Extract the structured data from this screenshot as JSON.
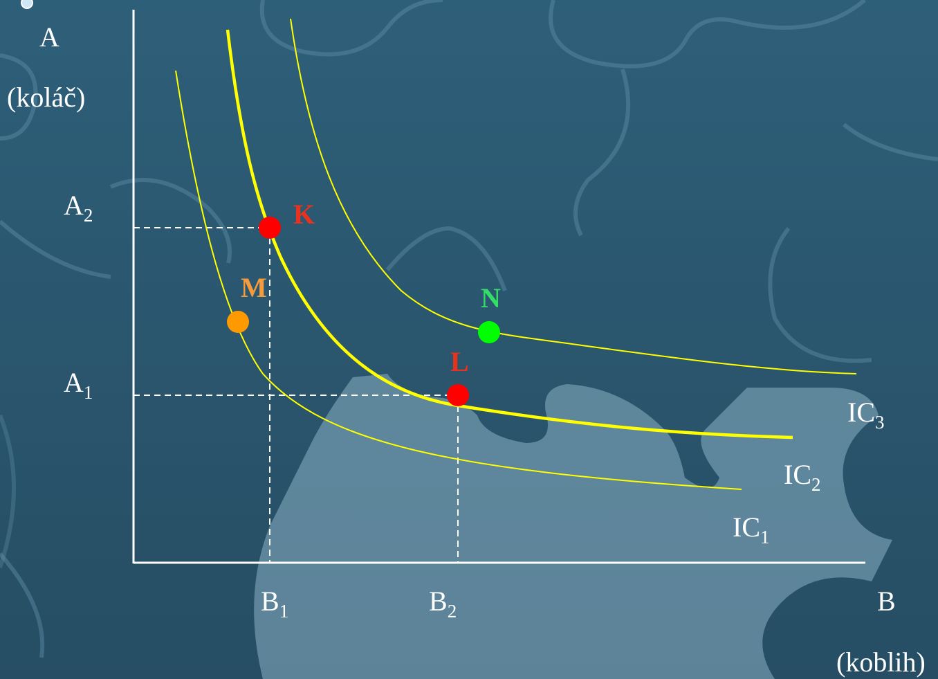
{
  "y_axis": {
    "letter": "A",
    "unit": "(koláč)"
  },
  "x_axis": {
    "letter": "B",
    "unit": "(koblih)"
  },
  "y_ticks": [
    {
      "base": "A",
      "sub": "2"
    },
    {
      "base": "A",
      "sub": "1"
    }
  ],
  "x_ticks": [
    {
      "base": "B",
      "sub": "1"
    },
    {
      "base": "B",
      "sub": "2"
    }
  ],
  "curves": [
    {
      "base": "IC",
      "sub": "1"
    },
    {
      "base": "IC",
      "sub": "2"
    },
    {
      "base": "IC",
      "sub": "3"
    }
  ],
  "points": [
    {
      "label": "K",
      "color": "#ff0000",
      "label_color": "#e8321e",
      "on_curve": "IC2",
      "coords": "B1, A2"
    },
    {
      "label": "L",
      "color": "#ff0000",
      "label_color": "#e8321e",
      "on_curve": "IC2",
      "coords": "B2, A1"
    },
    {
      "label": "M",
      "color": "#ff9900",
      "label_color": "#f79a3c",
      "on_curve": "IC1"
    },
    {
      "label": "N",
      "color": "#00ff00",
      "label_color": "#33dd66",
      "on_curve": "IC3"
    }
  ],
  "colors": {
    "background": "#2b5770",
    "curve": "#ffff00",
    "axis": "#ffffff",
    "guide": "#ffffff"
  }
}
